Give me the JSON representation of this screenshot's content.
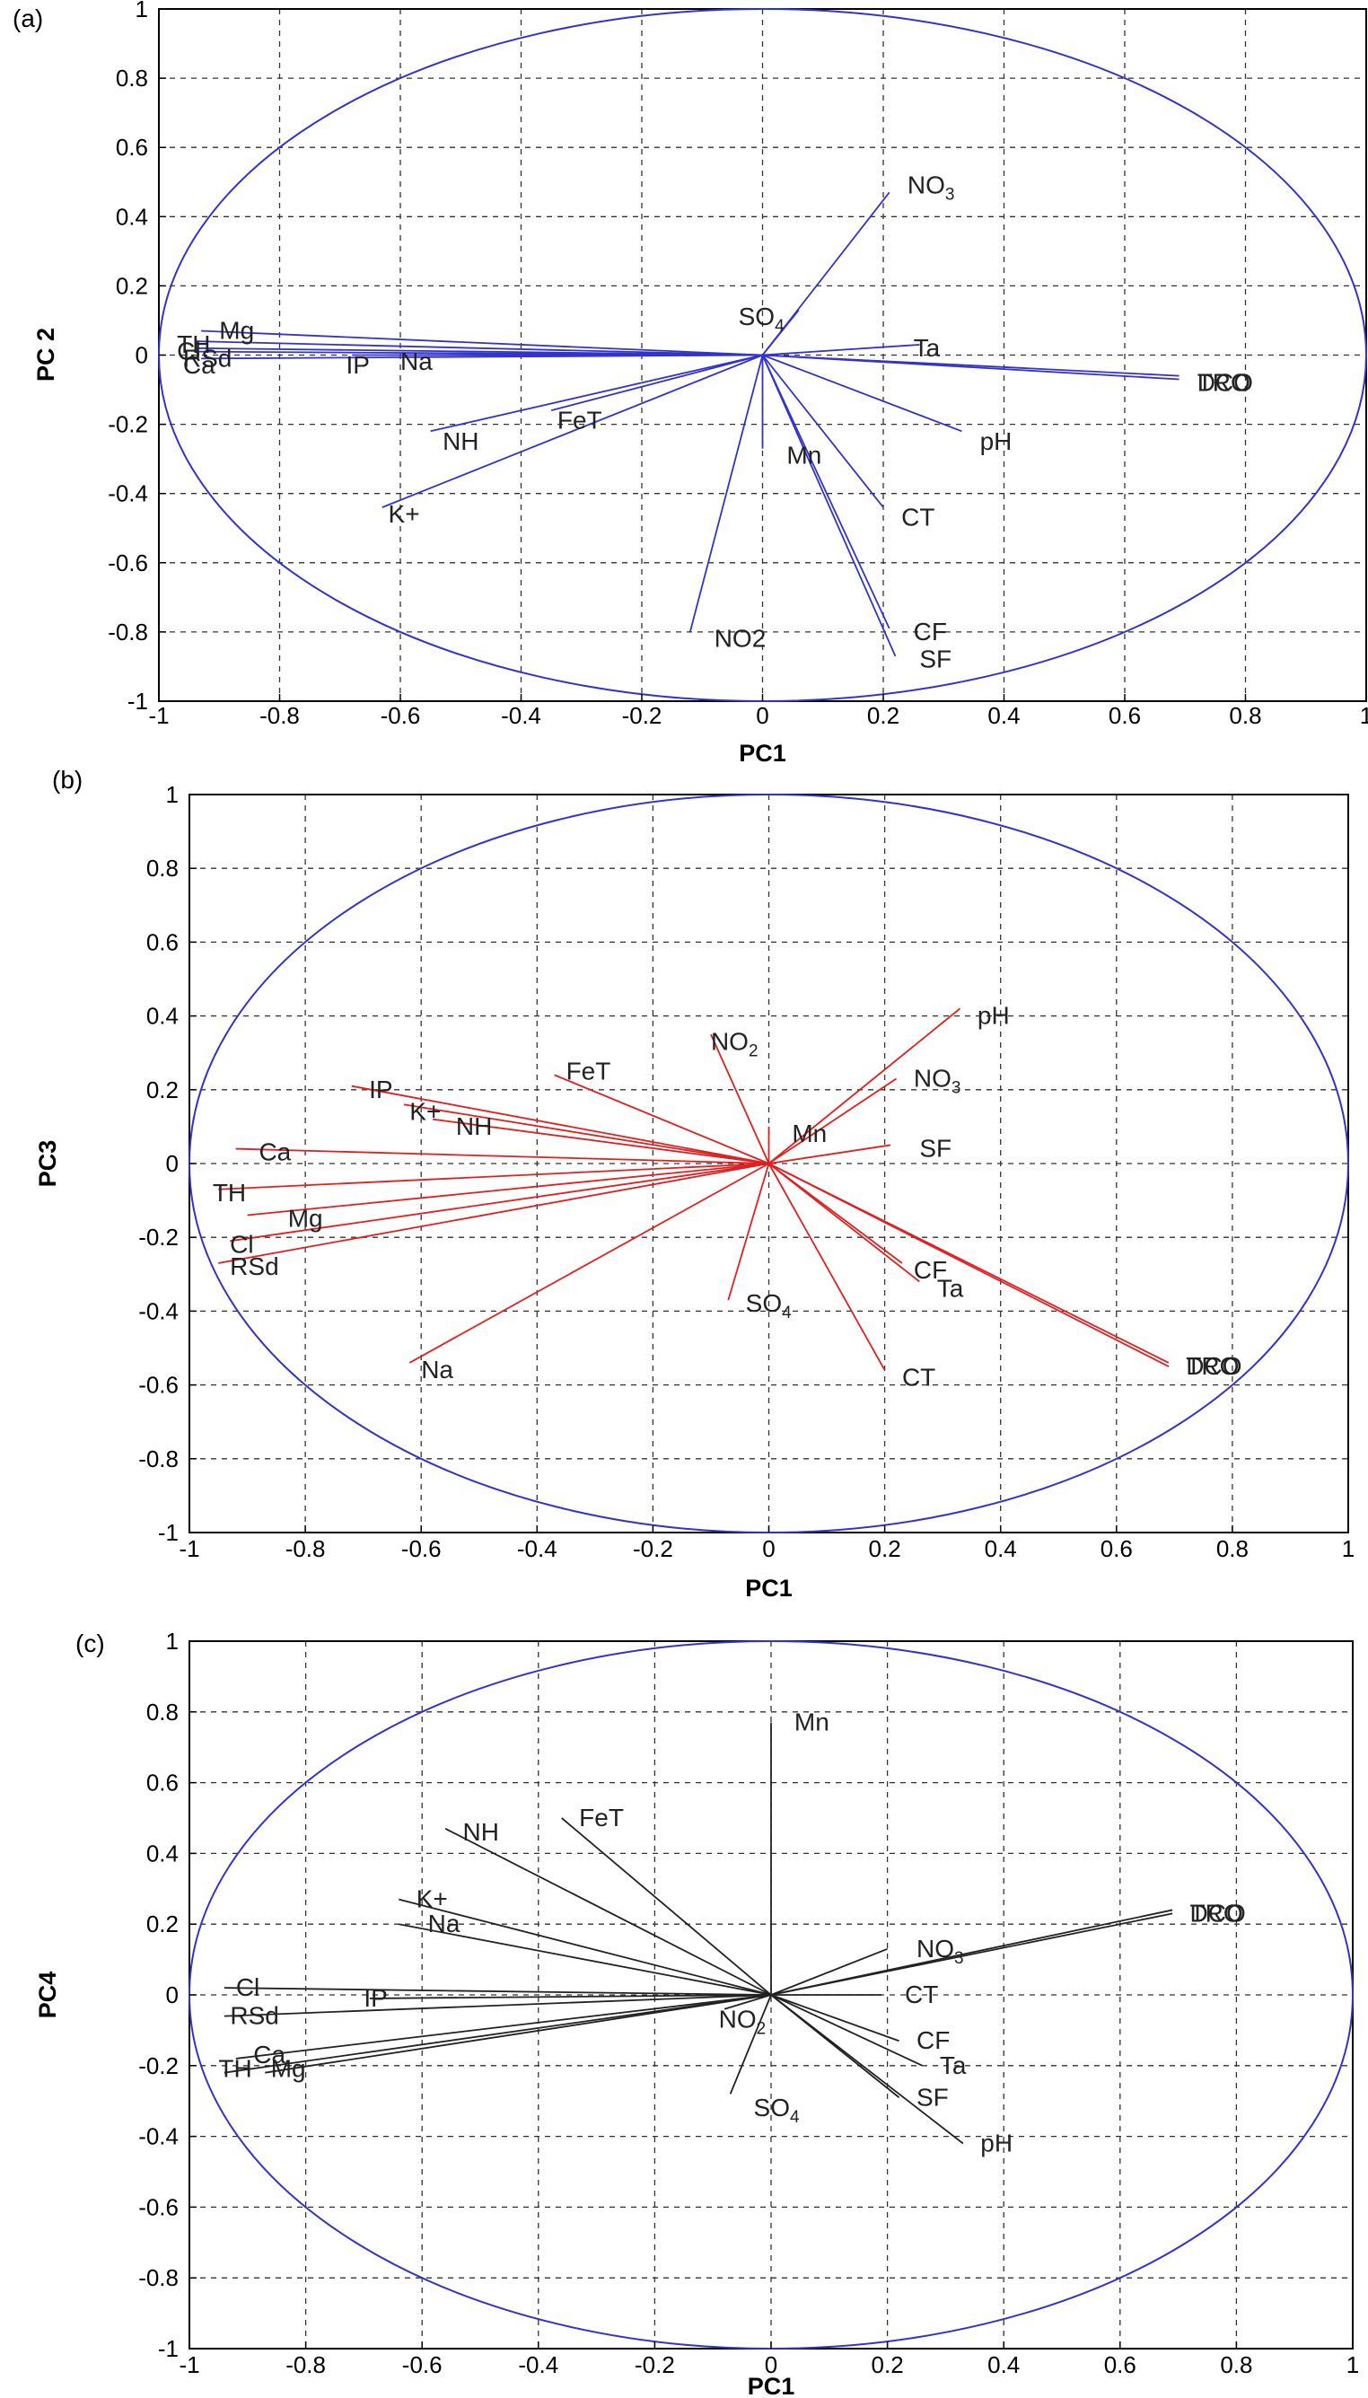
{
  "chart_data": [
    {
      "type": "scatter",
      "panel_label": "(a)",
      "xlabel": "PC1",
      "ylabel": "PC 2",
      "xlim": [
        -1,
        1
      ],
      "ylim": [
        -1,
        1
      ],
      "grid": true,
      "x_ticks": [
        "-1",
        "-0.8",
        "-0.6",
        "-0.4",
        "-0.2",
        "0",
        "0.2",
        "0.4",
        "0.6",
        "0.8",
        "1"
      ],
      "y_ticks": [
        "1",
        "0.8",
        "0.6",
        "0.4",
        "0.2",
        "0",
        "-0.2",
        "-0.4",
        "-0.6",
        "-0.8",
        "-1"
      ],
      "circle_color": "#3333cc",
      "vector_color": "#3333cc",
      "vectors": [
        {
          "label": "Mg",
          "x": -0.93,
          "y": 0.07
        },
        {
          "label": "TH",
          "x": -0.94,
          "y": 0.04
        },
        {
          "label": "Cl",
          "x": -0.94,
          "y": 0.02
        },
        {
          "label": "RSd",
          "x": -0.94,
          "y": 0.01
        },
        {
          "label": "Ca",
          "x": -0.93,
          "y": -0.01
        },
        {
          "label": "IP",
          "x": -0.68,
          "y": 0.0
        },
        {
          "label": "Na",
          "x": -0.62,
          "y": 0.0
        },
        {
          "label": "NH",
          "x": -0.55,
          "y": -0.22
        },
        {
          "label": "FeT",
          "x": -0.35,
          "y": -0.16
        },
        {
          "label": "K+",
          "x": -0.63,
          "y": -0.44
        },
        {
          "label": "NO3",
          "x": 0.21,
          "y": 0.47
        },
        {
          "label": "SO4",
          "x": 0.06,
          "y": 0.13
        },
        {
          "label": "Ta",
          "x": 0.26,
          "y": 0.03
        },
        {
          "label": "TRO",
          "x": 0.69,
          "y": -0.06
        },
        {
          "label": "DCO",
          "x": 0.69,
          "y": -0.07
        },
        {
          "label": "pH",
          "x": 0.33,
          "y": -0.22
        },
        {
          "label": "Mn",
          "x": 0.0,
          "y": -0.27
        },
        {
          "label": "CT",
          "x": 0.2,
          "y": -0.44
        },
        {
          "label": "CF",
          "x": 0.21,
          "y": -0.79
        },
        {
          "label": "SF",
          "x": 0.22,
          "y": -0.87
        },
        {
          "label": "NO2",
          "x": -0.12,
          "y": -0.8
        }
      ],
      "labels": [
        {
          "text": "Mg",
          "x": -0.9,
          "y": 0.07
        },
        {
          "text": "TH",
          "x": -0.97,
          "y": 0.03
        },
        {
          "text": "Cl",
          "x": -0.97,
          "y": 0.01
        },
        {
          "text": "RSd",
          "x": -0.96,
          "y": -0.01
        },
        {
          "text": "Ca",
          "x": -0.96,
          "y": -0.03
        },
        {
          "text": "IP",
          "x": -0.69,
          "y": -0.03
        },
        {
          "text": "Na",
          "x": -0.6,
          "y": -0.02
        },
        {
          "text": "NH",
          "x": -0.53,
          "y": -0.25
        },
        {
          "text": "FeT",
          "x": -0.34,
          "y": -0.19
        },
        {
          "text": "K+",
          "x": -0.62,
          "y": -0.46
        },
        {
          "text": "NO",
          "x": 0.24,
          "y": 0.49,
          "sub": "3"
        },
        {
          "text": "SO",
          "x": -0.04,
          "y": 0.11,
          "sub": "4"
        },
        {
          "text": "Ta",
          "x": 0.25,
          "y": 0.02
        },
        {
          "text": "TRO",
          "x": 0.72,
          "y": -0.08
        },
        {
          "text": "DCO",
          "x": 0.72,
          "y": -0.08
        },
        {
          "text": "pH",
          "x": 0.36,
          "y": -0.25
        },
        {
          "text": "Mn",
          "x": 0.04,
          "y": -0.29
        },
        {
          "text": "CT",
          "x": 0.23,
          "y": -0.47
        },
        {
          "text": "CF",
          "x": 0.25,
          "y": -0.8
        },
        {
          "text": "SF",
          "x": 0.26,
          "y": -0.88
        },
        {
          "text": "NO2",
          "x": -0.08,
          "y": -0.82
        }
      ]
    },
    {
      "type": "scatter",
      "panel_label": "(b)",
      "xlabel": "PC1",
      "ylabel": "PC3",
      "xlim": [
        -1,
        1
      ],
      "ylim": [
        -1,
        1
      ],
      "grid": true,
      "x_ticks": [
        "-1",
        "-0.8",
        "-0.6",
        "-0.4",
        "-0.2",
        "0",
        "0.2",
        "0.4",
        "0.6",
        "0.8",
        "1"
      ],
      "y_ticks": [
        "1",
        "0.8",
        "0.6",
        "0.4",
        "0.2",
        "0",
        "-0.2",
        "-0.4",
        "-0.6",
        "-0.8",
        "-1"
      ],
      "circle_color": "#3333cc",
      "vector_color": "#e02020",
      "vectors": [
        {
          "label": "IP",
          "x": -0.72,
          "y": 0.21
        },
        {
          "label": "K+",
          "x": -0.63,
          "y": 0.16
        },
        {
          "label": "NH",
          "x": -0.58,
          "y": 0.12
        },
        {
          "label": "FeT",
          "x": -0.37,
          "y": 0.24
        },
        {
          "label": "Ca",
          "x": -0.92,
          "y": 0.04
        },
        {
          "label": "TH",
          "x": -0.95,
          "y": -0.07
        },
        {
          "label": "Mg",
          "x": -0.9,
          "y": -0.14
        },
        {
          "label": "Cl",
          "x": -0.93,
          "y": -0.21
        },
        {
          "label": "RSd",
          "x": -0.95,
          "y": -0.27
        },
        {
          "label": "Na",
          "x": -0.62,
          "y": -0.54
        },
        {
          "label": "NO2",
          "x": -0.1,
          "y": 0.35
        },
        {
          "label": "pH",
          "x": 0.33,
          "y": 0.42
        },
        {
          "label": "NO3",
          "x": 0.22,
          "y": 0.23
        },
        {
          "label": "Mn",
          "x": 0.0,
          "y": 0.1
        },
        {
          "label": "SF",
          "x": 0.21,
          "y": 0.05
        },
        {
          "label": "CF",
          "x": 0.23,
          "y": -0.27
        },
        {
          "label": "Ta",
          "x": 0.26,
          "y": -0.32
        },
        {
          "label": "SO4",
          "x": -0.07,
          "y": -0.37
        },
        {
          "label": "CT",
          "x": 0.2,
          "y": -0.56
        },
        {
          "label": "TRO",
          "x": 0.69,
          "y": -0.54
        },
        {
          "label": "DCO",
          "x": 0.69,
          "y": -0.55
        }
      ],
      "labels": [
        {
          "text": "IP",
          "x": -0.69,
          "y": 0.2
        },
        {
          "text": "K+",
          "x": -0.62,
          "y": 0.14
        },
        {
          "text": "NH",
          "x": -0.54,
          "y": 0.1
        },
        {
          "text": "FeT",
          "x": -0.35,
          "y": 0.25
        },
        {
          "text": "Ca",
          "x": -0.88,
          "y": 0.03
        },
        {
          "text": "TH",
          "x": -0.96,
          "y": -0.08
        },
        {
          "text": "Mg",
          "x": -0.83,
          "y": -0.15
        },
        {
          "text": "Cl",
          "x": -0.93,
          "y": -0.22
        },
        {
          "text": "RSd",
          "x": -0.93,
          "y": -0.28
        },
        {
          "text": "Na",
          "x": -0.6,
          "y": -0.56
        },
        {
          "text": "NO",
          "x": -0.1,
          "y": 0.33,
          "sub": "2"
        },
        {
          "text": "pH",
          "x": 0.36,
          "y": 0.4
        },
        {
          "text": "NO",
          "x": 0.25,
          "y": 0.23,
          "sub": "3"
        },
        {
          "text": "Mn",
          "x": 0.04,
          "y": 0.08
        },
        {
          "text": "SF",
          "x": 0.26,
          "y": 0.04
        },
        {
          "text": "CF",
          "x": 0.25,
          "y": -0.29
        },
        {
          "text": "Ta",
          "x": 0.29,
          "y": -0.34
        },
        {
          "text": "SO",
          "x": -0.04,
          "y": -0.38,
          "sub": "4"
        },
        {
          "text": "CT",
          "x": 0.23,
          "y": -0.58
        },
        {
          "text": "TRO",
          "x": 0.72,
          "y": -0.55
        },
        {
          "text": "DCO",
          "x": 0.72,
          "y": -0.55
        }
      ]
    },
    {
      "type": "scatter",
      "panel_label": "(c)",
      "xlabel": "PC1",
      "ylabel": "PC4",
      "xlim": [
        -1,
        1
      ],
      "ylim": [
        -1,
        1
      ],
      "grid": true,
      "x_ticks": [
        "-1",
        "-0.8",
        "-0.6",
        "-0.4",
        "-0.2",
        "0",
        "0.2",
        "0.4",
        "0.6",
        "0.8",
        "1"
      ],
      "y_ticks": [
        "1",
        "0.8",
        "0.6",
        "0.4",
        "0.2",
        "0",
        "-0.2",
        "-0.4",
        "-0.6",
        "-0.8",
        "-1"
      ],
      "circle_color": "#3333cc",
      "vector_color": "#222222",
      "vectors": [
        {
          "label": "Mn",
          "x": 0.0,
          "y": 0.77
        },
        {
          "label": "NH",
          "x": -0.56,
          "y": 0.47
        },
        {
          "label": "FeT",
          "x": -0.36,
          "y": 0.5
        },
        {
          "label": "K+",
          "x": -0.64,
          "y": 0.27
        },
        {
          "label": "Na",
          "x": -0.64,
          "y": 0.2
        },
        {
          "label": "Cl",
          "x": -0.94,
          "y": 0.02
        },
        {
          "label": "IP",
          "x": -0.69,
          "y": -0.01
        },
        {
          "label": "RSd",
          "x": -0.94,
          "y": -0.06
        },
        {
          "label": "Ca",
          "x": -0.92,
          "y": -0.18
        },
        {
          "label": "TH",
          "x": -0.94,
          "y": -0.22
        },
        {
          "label": "Mg",
          "x": -0.87,
          "y": -0.22
        },
        {
          "label": "TRO",
          "x": 0.69,
          "y": 0.24
        },
        {
          "label": "DCO",
          "x": 0.69,
          "y": 0.23
        },
        {
          "label": "NO3",
          "x": 0.2,
          "y": 0.13
        },
        {
          "label": "CT",
          "x": 0.19,
          "y": 0.0
        },
        {
          "label": "CF",
          "x": 0.22,
          "y": -0.13
        },
        {
          "label": "Ta",
          "x": 0.26,
          "y": -0.2
        },
        {
          "label": "SF",
          "x": 0.22,
          "y": -0.29
        },
        {
          "label": "pH",
          "x": 0.33,
          "y": -0.42
        },
        {
          "label": "NO2",
          "x": -0.08,
          "y": -0.04
        },
        {
          "label": "SO4",
          "x": -0.07,
          "y": -0.28
        }
      ],
      "labels": [
        {
          "text": "Mn",
          "x": 0.04,
          "y": 0.77
        },
        {
          "text": "NH",
          "x": -0.53,
          "y": 0.46
        },
        {
          "text": "FeT",
          "x": -0.33,
          "y": 0.5
        },
        {
          "text": "K+",
          "x": -0.61,
          "y": 0.27
        },
        {
          "text": "Na",
          "x": -0.59,
          "y": 0.2
        },
        {
          "text": "Cl",
          "x": -0.92,
          "y": 0.02
        },
        {
          "text": "IP",
          "x": -0.7,
          "y": -0.01
        },
        {
          "text": "RSd",
          "x": -0.93,
          "y": -0.06
        },
        {
          "text": "Ca",
          "x": -0.89,
          "y": -0.17
        },
        {
          "text": "TH",
          "x": -0.95,
          "y": -0.21
        },
        {
          "text": "Mg",
          "x": -0.86,
          "y": -0.21
        },
        {
          "text": "TRO",
          "x": 0.72,
          "y": 0.23
        },
        {
          "text": "DCO",
          "x": 0.72,
          "y": 0.23
        },
        {
          "text": "NO",
          "x": 0.25,
          "y": 0.13,
          "sub": "3"
        },
        {
          "text": "CT",
          "x": 0.23,
          "y": 0.0
        },
        {
          "text": "CF",
          "x": 0.25,
          "y": -0.13
        },
        {
          "text": "Ta",
          "x": 0.29,
          "y": -0.2
        },
        {
          "text": "SF",
          "x": 0.25,
          "y": -0.29
        },
        {
          "text": "pH",
          "x": 0.36,
          "y": -0.42
        },
        {
          "text": "NO",
          "x": -0.09,
          "y": -0.07,
          "sub": "2"
        },
        {
          "text": "SO",
          "x": -0.03,
          "y": -0.32,
          "sub": "4"
        }
      ]
    }
  ]
}
